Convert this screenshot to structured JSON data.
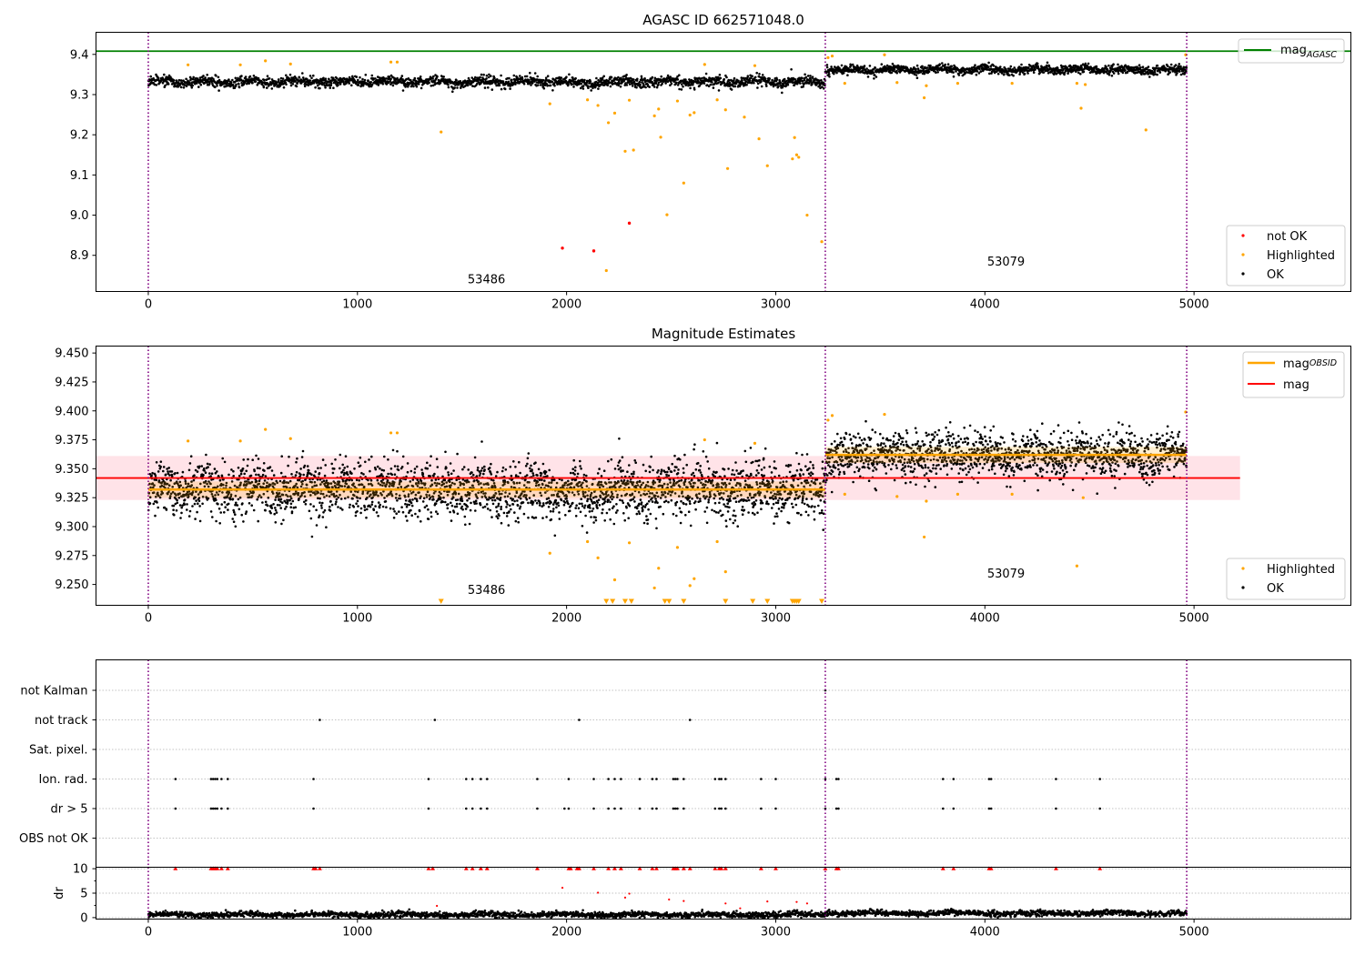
{
  "colors": {
    "ok": "#000000",
    "highlighted": "#ffa500",
    "not_ok": "#ff0000",
    "mag_agasc": "#008000",
    "mag_obsid": "#ffa500",
    "mag": "#ff0000",
    "mag_band": "#ffc0cb",
    "obs_boundary": "#800080",
    "grid": "#b0b0b0"
  },
  "icons": [
    "legend-line-swatch",
    "legend-dot-swatch",
    "down-triangle-marker"
  ],
  "chart_data": [
    {
      "type": "scatter",
      "title": "AGASC ID 662571048.0",
      "xlim": [
        -250,
        5750
      ],
      "ylim": [
        8.81,
        9.455
      ],
      "xticks": [
        0,
        1000,
        2000,
        3000,
        4000,
        5000
      ],
      "yticks": [
        8.9,
        9.0,
        9.1,
        9.2,
        9.3,
        9.4
      ],
      "ytick_labels": [
        "8.9",
        "9.0",
        "9.1",
        "9.2",
        "9.3",
        "9.4"
      ],
      "obs_boundaries": [
        0,
        3237,
        4965
      ],
      "obsids": [
        {
          "label": "53486",
          "x": 1617,
          "y": 8.83
        },
        {
          "label": "53079",
          "x": 4101,
          "y": 8.875
        }
      ],
      "reference_lines": [
        {
          "name": "mag_AGASC",
          "y": 9.408
        }
      ],
      "ok_segments": [
        {
          "x0": 0,
          "x1": 3237,
          "mean": 9.332,
          "sd": 0.012
        },
        {
          "x0": 3237,
          "x1": 4965,
          "mean": 9.362,
          "sd": 0.01
        }
      ],
      "highlighted": [
        [
          190,
          9.374
        ],
        [
          440,
          9.374
        ],
        [
          560,
          9.384
        ],
        [
          680,
          9.376
        ],
        [
          1160,
          9.381
        ],
        [
          1190,
          9.381
        ],
        [
          1400,
          9.207
        ],
        [
          1920,
          9.277
        ],
        [
          2100,
          9.287
        ],
        [
          2150,
          9.273
        ],
        [
          2200,
          9.23
        ],
        [
          2230,
          9.254
        ],
        [
          2280,
          9.159
        ],
        [
          2300,
          9.286
        ],
        [
          2320,
          9.162
        ],
        [
          2420,
          9.247
        ],
        [
          2440,
          9.264
        ],
        [
          2450,
          9.194
        ],
        [
          2480,
          9.001
        ],
        [
          2530,
          9.284
        ],
        [
          2560,
          9.08
        ],
        [
          2590,
          9.249
        ],
        [
          2610,
          9.255
        ],
        [
          2660,
          9.375
        ],
        [
          2720,
          9.287
        ],
        [
          2760,
          9.262
        ],
        [
          2770,
          9.116
        ],
        [
          2850,
          9.244
        ],
        [
          2900,
          9.372
        ],
        [
          2920,
          9.19
        ],
        [
          2960,
          9.123
        ],
        [
          3080,
          9.14
        ],
        [
          3090,
          9.193
        ],
        [
          3100,
          9.15
        ],
        [
          3110,
          9.144
        ],
        [
          3150,
          9.0
        ],
        [
          3220,
          8.934
        ],
        [
          3250,
          9.392
        ],
        [
          3270,
          9.396
        ],
        [
          3330,
          9.328
        ],
        [
          3520,
          9.399
        ],
        [
          3580,
          9.33
        ],
        [
          3710,
          9.292
        ],
        [
          3720,
          9.322
        ],
        [
          3870,
          9.328
        ],
        [
          4130,
          9.328
        ],
        [
          4440,
          9.328
        ],
        [
          4480,
          9.325
        ],
        [
          4460,
          9.266
        ],
        [
          4770,
          9.212
        ],
        [
          4960,
          9.399
        ],
        [
          2190,
          8.862
        ]
      ],
      "not_ok": [
        [
          1980,
          8.918
        ],
        [
          2130,
          8.911
        ],
        [
          2300,
          8.98
        ]
      ],
      "legends": [
        {
          "position": "top-right",
          "entries": [
            {
              "label": "mag",
              "sub": "AGASC",
              "kind": "line",
              "color": "#008000"
            }
          ]
        },
        {
          "position": "bottom-right",
          "entries": [
            {
              "label": "not OK",
              "kind": "dot",
              "color": "#ff0000"
            },
            {
              "label": "Highlighted",
              "kind": "dot",
              "color": "#ffa500"
            },
            {
              "label": "OK",
              "kind": "dot",
              "color": "#000000"
            }
          ]
        }
      ]
    },
    {
      "type": "scatter",
      "title": "Magnitude Estimates",
      "xlim": [
        -250,
        5750
      ],
      "ylim": [
        9.232,
        9.456
      ],
      "xticks": [
        0,
        1000,
        2000,
        3000,
        4000,
        5000
      ],
      "yticks": [
        9.25,
        9.275,
        9.3,
        9.325,
        9.35,
        9.375,
        9.4,
        9.425,
        9.45
      ],
      "ytick_labels": [
        "9.250",
        "9.275",
        "9.300",
        "9.325",
        "9.350",
        "9.375",
        "9.400",
        "9.425",
        "9.450"
      ],
      "obs_boundaries": [
        0,
        3237,
        4965
      ],
      "obsids": [
        {
          "label": "53486",
          "x": 1617,
          "y": 9.242
        },
        {
          "label": "53079",
          "x": 4101,
          "y": 9.256
        }
      ],
      "mag": 9.342,
      "mag_band": [
        9.323,
        9.361
      ],
      "mag_line_x": [
        -250,
        5220
      ],
      "mag_obsid": [
        {
          "x0": 0,
          "x1": 3237,
          "y": 9.332
        },
        {
          "x0": 3237,
          "x1": 4965,
          "y": 9.362
        }
      ],
      "ok_segments": [
        {
          "x0": 0,
          "x1": 3237,
          "mean": 9.332,
          "sd": 0.012
        },
        {
          "x0": 3237,
          "x1": 4965,
          "mean": 9.362,
          "sd": 0.01
        }
      ],
      "highlighted": [
        [
          190,
          9.374
        ],
        [
          440,
          9.374
        ],
        [
          560,
          9.384
        ],
        [
          680,
          9.376
        ],
        [
          1160,
          9.381
        ],
        [
          1190,
          9.381
        ],
        [
          1920,
          9.277
        ],
        [
          2100,
          9.287
        ],
        [
          2150,
          9.273
        ],
        [
          2230,
          9.254
        ],
        [
          2300,
          9.286
        ],
        [
          2420,
          9.247
        ],
        [
          2440,
          9.264
        ],
        [
          2530,
          9.282
        ],
        [
          2590,
          9.249
        ],
        [
          2610,
          9.255
        ],
        [
          2660,
          9.375
        ],
        [
          2720,
          9.287
        ],
        [
          2760,
          9.261
        ],
        [
          2900,
          9.372
        ],
        [
          3250,
          9.392
        ],
        [
          3270,
          9.396
        ],
        [
          3330,
          9.328
        ],
        [
          3520,
          9.397
        ],
        [
          3580,
          9.326
        ],
        [
          3710,
          9.291
        ],
        [
          3720,
          9.322
        ],
        [
          3870,
          9.328
        ],
        [
          4130,
          9.328
        ],
        [
          4470,
          9.325
        ],
        [
          4440,
          9.266
        ],
        [
          4960,
          9.399
        ]
      ],
      "below_range": [
        1400,
        2190,
        2220,
        2280,
        2310,
        2470,
        2490,
        2560,
        2760,
        2890,
        2960,
        3080,
        3090,
        3100,
        3110,
        3220
      ],
      "legends": [
        {
          "position": "top-right",
          "entries": [
            {
              "label": "mag",
              "sub": "OBSID",
              "kind": "line",
              "color": "#ffa500"
            },
            {
              "label": "mag",
              "kind": "line",
              "color": "#ff0000"
            }
          ]
        },
        {
          "position": "bottom-right",
          "entries": [
            {
              "label": "Highlighted",
              "kind": "dot",
              "color": "#ffa500"
            },
            {
              "label": "OK",
              "kind": "dot",
              "color": "#000000"
            }
          ]
        }
      ]
    },
    {
      "type": "scatter",
      "title": "",
      "xlim": [
        -250,
        5750
      ],
      "xticks": [
        0,
        1000,
        2000,
        3000,
        4000,
        5000
      ],
      "obs_boundaries": [
        0,
        3237,
        4965
      ],
      "flag_rows": [
        "not Kalman",
        "not track",
        "Sat. pixel.",
        "Ion. rad.",
        "dr > 5",
        "OBS not OK"
      ],
      "flags": {
        "not Kalman": [
          3237
        ],
        "not track": [
          820,
          1370,
          2060,
          2590
        ],
        "Sat. pixel.": [],
        "Ion. rad.": [
          130,
          300,
          310,
          320,
          330,
          350,
          380,
          790,
          1340,
          1520,
          1550,
          1590,
          1620,
          1860,
          2010,
          2130,
          2200,
          2230,
          2260,
          2350,
          2410,
          2430,
          2510,
          2520,
          2530,
          2560,
          2710,
          2730,
          2740,
          2760,
          2930,
          3000,
          3237,
          3290,
          3300,
          3800,
          3850,
          4020,
          4030,
          4340,
          4550
        ],
        "dr > 5": [
          130,
          300,
          310,
          320,
          330,
          350,
          380,
          790,
          1340,
          1520,
          1550,
          1590,
          1620,
          1860,
          1990,
          2010,
          2130,
          2200,
          2230,
          2260,
          2350,
          2410,
          2430,
          2510,
          2520,
          2530,
          2560,
          2710,
          2730,
          2740,
          2760,
          2930,
          3000,
          3237,
          3290,
          3300,
          3800,
          3850,
          4020,
          4030,
          4340,
          4550
        ],
        "OBS not OK": []
      },
      "dr_ylabel": "dr",
      "dr_yticks": [
        0,
        5,
        10
      ],
      "dr_ylim": [
        -0.3,
        10.3
      ],
      "dr_outliers": [
        [
          1980,
          6.1
        ],
        [
          2150,
          5.1
        ],
        [
          2280,
          4.1
        ],
        [
          2300,
          4.9
        ],
        [
          2490,
          3.7
        ],
        [
          2560,
          3.4
        ],
        [
          2760,
          2.9
        ],
        [
          2830,
          1.9
        ],
        [
          2960,
          3.3
        ],
        [
          3100,
          3.2
        ],
        [
          3150,
          2.9
        ],
        [
          1380,
          2.4
        ]
      ],
      "dr_saturated_x": [
        130,
        300,
        310,
        320,
        330,
        350,
        380,
        790,
        800,
        820,
        1340,
        1360,
        1520,
        1550,
        1590,
        1620,
        1860,
        2010,
        2020,
        2050,
        2060,
        2130,
        2200,
        2230,
        2260,
        2350,
        2410,
        2430,
        2510,
        2520,
        2530,
        2560,
        2590,
        2710,
        2730,
        2740,
        2760,
        2930,
        3000,
        3237,
        3290,
        3300,
        3800,
        3850,
        4020,
        4030,
        4340,
        4550
      ]
    }
  ]
}
